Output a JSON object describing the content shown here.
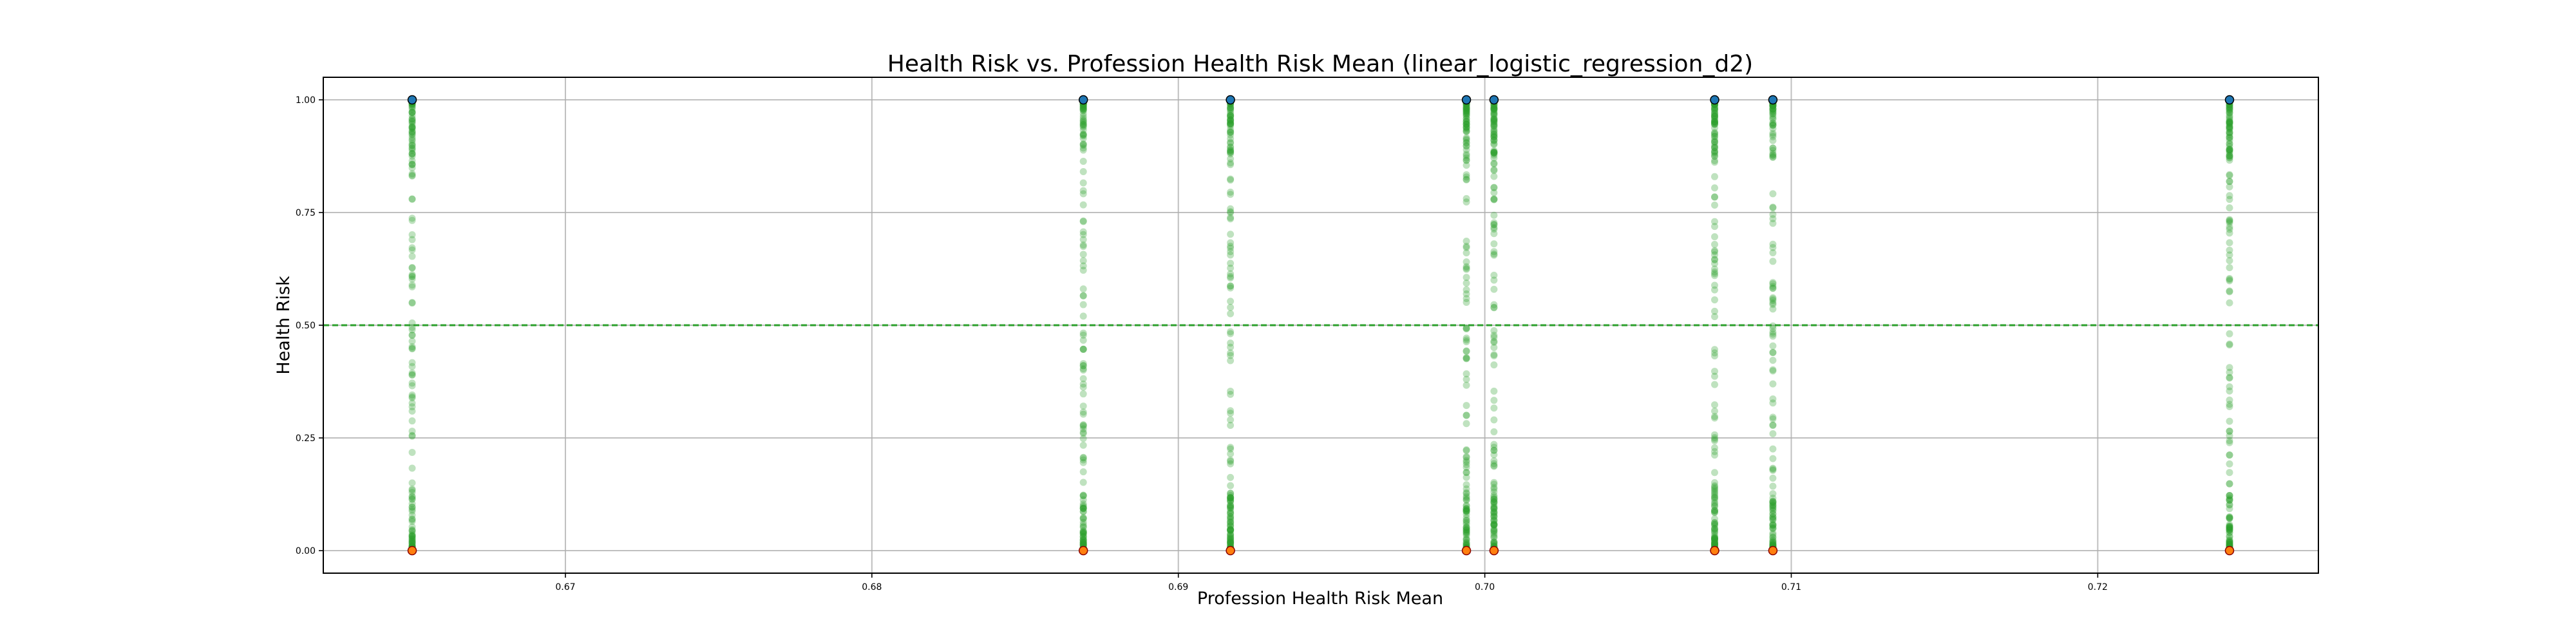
{
  "chart_data": {
    "type": "scatter",
    "title": "Health Risk vs. Profession Health Risk Mean (linear_logistic_regression_d2)",
    "xlabel": "Profession Health Risk Mean",
    "ylabel": "Health Risk",
    "xlim": [
      0.6621,
      0.7272
    ],
    "ylim": [
      -0.05,
      1.05
    ],
    "x_ticks": [
      0.67,
      0.68,
      0.69,
      0.7,
      0.71,
      0.72
    ],
    "x_tick_labels": [
      "0.67",
      "0.68",
      "0.69",
      "0.70",
      "0.71",
      "0.72"
    ],
    "y_ticks": [
      0.0,
      0.25,
      0.5,
      0.75,
      1.0
    ],
    "y_tick_labels": [
      "0.00",
      "0.25",
      "0.50",
      "0.75",
      "1.00"
    ],
    "grid": true,
    "threshold": {
      "y": 0.5,
      "style": "dashed",
      "color": "#2ca02c"
    },
    "profession_x": [
      0.665,
      0.6869,
      0.6917,
      0.6994,
      0.7003,
      0.7075,
      0.7094,
      0.7243
    ],
    "series": [
      {
        "values_at": 1.0,
        "color": "#1f77b4",
        "edge": "#000000"
      },
      {
        "values_at": 0.0,
        "color": "#ff7f0e",
        "edge": "#8b0000"
      },
      {
        "values_range": [
          0.0,
          1.0
        ],
        "color": "#2ca02c",
        "alpha": 0.3
      }
    ]
  }
}
